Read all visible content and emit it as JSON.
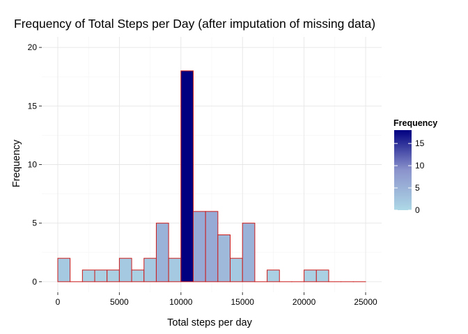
{
  "chart_data": {
    "type": "bar",
    "title": "Frequency of Total Steps per Day (after imputation of missing data)",
    "xlabel": "Total steps per day",
    "ylabel": "Frequency",
    "binwidth": 1000,
    "x_bin_starts": [
      0,
      1000,
      2000,
      3000,
      4000,
      5000,
      6000,
      7000,
      8000,
      9000,
      10000,
      11000,
      12000,
      13000,
      14000,
      15000,
      16000,
      17000,
      18000,
      19000,
      20000,
      21000,
      22000,
      23000,
      24000
    ],
    "values": [
      2,
      0,
      1,
      1,
      1,
      2,
      1,
      2,
      5,
      2,
      18,
      6,
      6,
      4,
      2,
      5,
      0,
      1,
      0,
      0,
      1,
      1,
      0,
      0,
      0
    ],
    "xlim": [
      -1300,
      26300
    ],
    "ylim": [
      -0.9,
      20.9
    ],
    "x_ticks": [
      0,
      5000,
      10000,
      15000,
      20000,
      25000
    ],
    "x_tick_labels": [
      "0",
      "5000",
      "10000",
      "15000",
      "20000",
      "25000"
    ],
    "y_ticks": [
      0,
      5,
      10,
      15,
      20
    ],
    "y_tick_labels": [
      "0",
      "5",
      "10",
      "15",
      "20"
    ],
    "grid": true,
    "bar_outline_color": "#cc1a1a",
    "fill_scale": {
      "low": "#add8e6",
      "mid": "#8b93cc",
      "high": "#000080"
    },
    "legend": {
      "title": "Frequency",
      "position": "right",
      "range": [
        0,
        18
      ],
      "ticks": [
        0,
        5,
        10,
        15
      ],
      "tick_labels": [
        "0",
        "5",
        "10",
        "15"
      ]
    }
  }
}
